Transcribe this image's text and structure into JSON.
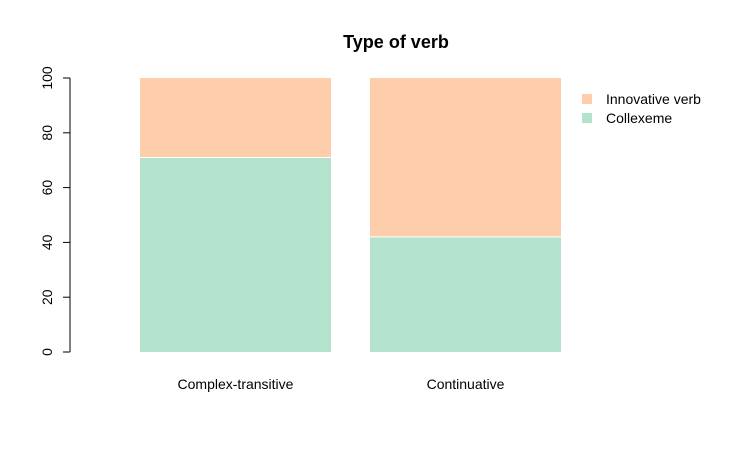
{
  "chart_data": {
    "type": "bar",
    "stacked": true,
    "title": "Type of verb",
    "xlabel": "",
    "ylabel": "",
    "ylim": [
      0,
      100
    ],
    "yticks": [
      "0",
      "20",
      "40",
      "60",
      "80",
      "100"
    ],
    "categories": [
      "Complex-transitive",
      "Continuative"
    ],
    "series": [
      {
        "name": "Collexeme",
        "values": [
          71,
          42
        ],
        "color": "#B3E2CD"
      },
      {
        "name": "Innovative verb",
        "values": [
          29,
          58
        ],
        "color": "#FDCDAC"
      }
    ],
    "legend": {
      "position": "top-right",
      "order": [
        "Innovative verb",
        "Collexeme"
      ]
    },
    "grid": false
  }
}
